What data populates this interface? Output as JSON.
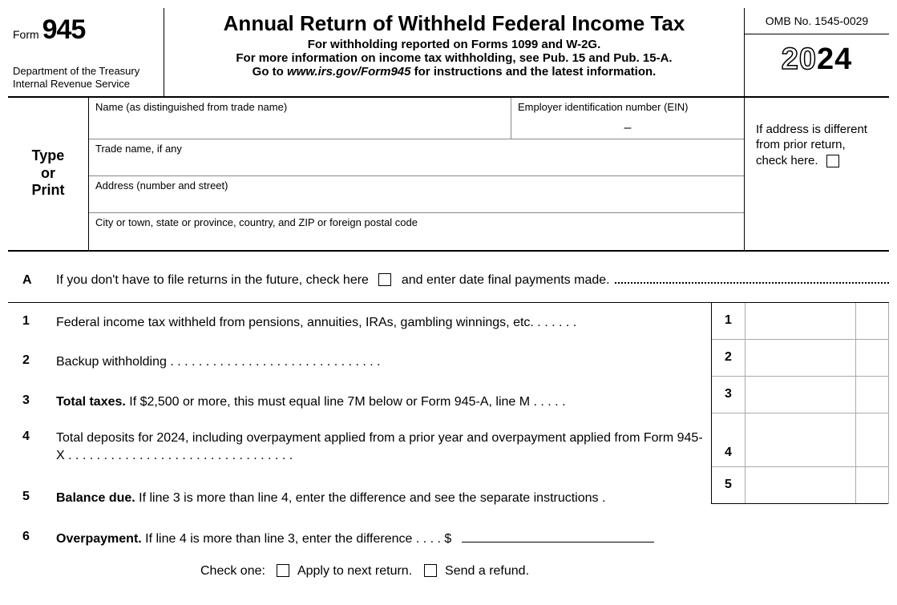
{
  "header": {
    "form_word": "Form",
    "form_number": "945",
    "dept_line1": "Department of the Treasury",
    "dept_line2": "Internal Revenue Service",
    "title": "Annual Return of Withheld Federal Income Tax",
    "sub1": "For withholding reported on Forms 1099 and W-2G.",
    "sub2": "For more information on income tax withholding, see Pub. 15 and Pub. 15-A.",
    "sub3_pre": "Go to ",
    "sub3_url": "www.irs.gov/Form945",
    "sub3_post": " for instructions and the latest information.",
    "omb": "OMB No. 1545-0029",
    "year_outline": "20",
    "year_bold": "24"
  },
  "identity": {
    "type_or_print": "Type\nor\nPrint",
    "name_label": "Name (as distinguished from trade name)",
    "ein_label": "Employer identification number (EIN)",
    "ein_dash": "–",
    "trade_label": "Trade name, if any",
    "address_label": "Address (number and street)",
    "city_label": "City or town, state or province, country, and ZIP or foreign postal code",
    "addr_diff": "If address is different from prior return, check here."
  },
  "lineA": {
    "letter": "A",
    "text_pre": "If you don't have to file returns in the future, check here",
    "text_post": "and enter date final payments made."
  },
  "lines": [
    {
      "n": "1",
      "html": "Federal income tax withheld from pensions, annuities, IRAs, gambling winnings, etc.   .    .    .    .    .    ."
    },
    {
      "n": "2",
      "html": "Backup withholding    .    .    .    .    .    .    .    .    .    .    .    .    .    .    .    .    .    .    .    .    .    .    .    .    .    .    .    .    .    ."
    },
    {
      "n": "3",
      "html": "<b>Total taxes.</b> If $2,500 or more, this must equal line 7M below or Form 945-A, line M    .    .    .    .    ."
    },
    {
      "n": "4",
      "html": "Total deposits for 2024, including overpayment applied from a prior year and overpayment applied from Form 945-X    .    .    .    .    .    .    .    .    .    .    .    .    .    .    .    .    .    .    .    .    .    .    .    .    .    .    .    .    .    .    .    ."
    },
    {
      "n": "5",
      "html": "<b>Balance due.</b> If line 3 is more than line 4, enter the difference and see the separate instructions    ."
    },
    {
      "n": "6",
      "html": "<b>Overpayment.</b> If line 4 is more than line 3, enter the difference    .    .    .    .  $"
    }
  ],
  "checkone": {
    "label": "Check one:",
    "opt1": "Apply to next return.",
    "opt2": "Send a refund."
  }
}
